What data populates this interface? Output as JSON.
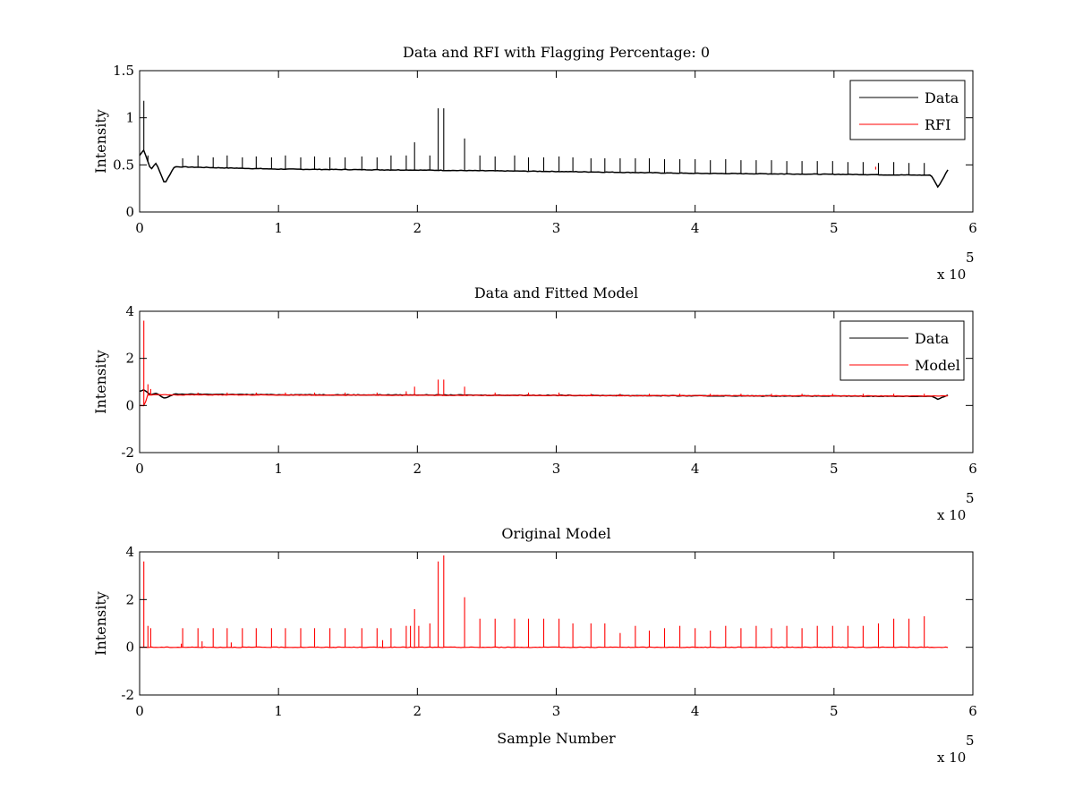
{
  "chart_data": [
    {
      "type": "line",
      "title": "Data and RFI with Flagging Percentage: 0",
      "xlabel": "",
      "ylabel": "Intensity",
      "xlim": [
        0,
        600000
      ],
      "ylim": [
        0,
        1.5
      ],
      "xticks": [
        0,
        1,
        2,
        3,
        4,
        5,
        6
      ],
      "yticks": [
        0,
        0.5,
        1,
        1.5
      ],
      "x_exponent_label": "x 10",
      "x_exponent": "5",
      "legend_position": "top-right",
      "legend": [
        {
          "name": "Data",
          "color": "#000000"
        },
        {
          "name": "RFI",
          "color": "#ff0000"
        }
      ],
      "series": [
        {
          "name": "Data",
          "color": "#000000",
          "baseline": {
            "x": [
              0,
              3000,
              8000,
              12000,
              18000,
              25000,
              100000,
              200000,
              300000,
              400000,
              500000,
              570000,
              575000,
              582000
            ],
            "y": [
              0.6,
              0.66,
              0.45,
              0.52,
              0.3,
              0.48,
              0.455,
              0.445,
              0.43,
              0.41,
              0.4,
              0.39,
              0.26,
              0.45
            ]
          },
          "spikes": [
            {
              "x": 3000,
              "y": 1.18
            },
            {
              "x": 6000,
              "y": 0.6
            },
            {
              "x": 31000,
              "y": 0.57
            },
            {
              "x": 42000,
              "y": 0.6
            },
            {
              "x": 53000,
              "y": 0.58
            },
            {
              "x": 63000,
              "y": 0.6
            },
            {
              "x": 74000,
              "y": 0.58
            },
            {
              "x": 84000,
              "y": 0.59
            },
            {
              "x": 95000,
              "y": 0.58
            },
            {
              "x": 105000,
              "y": 0.6
            },
            {
              "x": 116000,
              "y": 0.58
            },
            {
              "x": 126000,
              "y": 0.59
            },
            {
              "x": 137000,
              "y": 0.58
            },
            {
              "x": 148000,
              "y": 0.58
            },
            {
              "x": 160000,
              "y": 0.59
            },
            {
              "x": 171000,
              "y": 0.58
            },
            {
              "x": 181000,
              "y": 0.6
            },
            {
              "x": 192000,
              "y": 0.6
            },
            {
              "x": 198000,
              "y": 0.74
            },
            {
              "x": 209000,
              "y": 0.6
            },
            {
              "x": 215000,
              "y": 1.1
            },
            {
              "x": 219000,
              "y": 1.1
            },
            {
              "x": 234000,
              "y": 0.78
            },
            {
              "x": 245000,
              "y": 0.6
            },
            {
              "x": 256000,
              "y": 0.59
            },
            {
              "x": 270000,
              "y": 0.6
            },
            {
              "x": 280000,
              "y": 0.58
            },
            {
              "x": 291000,
              "y": 0.58
            },
            {
              "x": 302000,
              "y": 0.59
            },
            {
              "x": 312000,
              "y": 0.58
            },
            {
              "x": 325000,
              "y": 0.57
            },
            {
              "x": 335000,
              "y": 0.57
            },
            {
              "x": 346000,
              "y": 0.57
            },
            {
              "x": 357000,
              "y": 0.57
            },
            {
              "x": 367000,
              "y": 0.57
            },
            {
              "x": 378000,
              "y": 0.56
            },
            {
              "x": 389000,
              "y": 0.56
            },
            {
              "x": 400000,
              "y": 0.56
            },
            {
              "x": 411000,
              "y": 0.55
            },
            {
              "x": 422000,
              "y": 0.56
            },
            {
              "x": 433000,
              "y": 0.55
            },
            {
              "x": 444000,
              "y": 0.55
            },
            {
              "x": 455000,
              "y": 0.55
            },
            {
              "x": 466000,
              "y": 0.54
            },
            {
              "x": 477000,
              "y": 0.54
            },
            {
              "x": 488000,
              "y": 0.54
            },
            {
              "x": 499000,
              "y": 0.54
            },
            {
              "x": 510000,
              "y": 0.53
            },
            {
              "x": 521000,
              "y": 0.53
            },
            {
              "x": 532000,
              "y": 0.52
            },
            {
              "x": 543000,
              "y": 0.53
            },
            {
              "x": 554000,
              "y": 0.52
            },
            {
              "x": 565000,
              "y": 0.52
            }
          ]
        },
        {
          "name": "RFI",
          "color": "#ff0000",
          "spikes": [
            {
              "x": 530000,
              "y": 0.48
            }
          ]
        }
      ]
    },
    {
      "type": "line",
      "title": "Data and Fitted Model",
      "xlabel": "",
      "ylabel": "Intensity",
      "xlim": [
        0,
        600000
      ],
      "ylim": [
        -2,
        4
      ],
      "xticks": [
        0,
        1,
        2,
        3,
        4,
        5,
        6
      ],
      "yticks": [
        -2,
        0,
        2,
        4
      ],
      "x_exponent_label": "x 10",
      "x_exponent": "5",
      "legend_position": "top-right",
      "legend": [
        {
          "name": "Data",
          "color": "#000000"
        },
        {
          "name": "Model",
          "color": "#ff0000"
        }
      ],
      "series": [
        {
          "name": "Data",
          "color": "#000000",
          "baseline": {
            "x": [
              0,
              3000,
              8000,
              12000,
              18000,
              25000,
              100000,
              200000,
              300000,
              400000,
              500000,
              570000,
              575000,
              582000
            ],
            "y": [
              0.6,
              0.66,
              0.45,
              0.52,
              0.3,
              0.48,
              0.455,
              0.445,
              0.43,
              0.41,
              0.4,
              0.39,
              0.26,
              0.45
            ]
          }
        },
        {
          "name": "Model",
          "color": "#ff0000",
          "baseline": {
            "x": [
              0,
              4000,
              5000,
              25000,
              582000
            ],
            "y": [
              0,
              0,
              0.45,
              0.45,
              0.4
            ]
          },
          "spikes": [
            {
              "x": 3000,
              "y": 3.6
            },
            {
              "x": 6000,
              "y": 0.9
            },
            {
              "x": 8000,
              "y": 0.7
            },
            {
              "x": 42000,
              "y": 0.55
            },
            {
              "x": 63000,
              "y": 0.55
            },
            {
              "x": 84000,
              "y": 0.55
            },
            {
              "x": 105000,
              "y": 0.55
            },
            {
              "x": 126000,
              "y": 0.55
            },
            {
              "x": 148000,
              "y": 0.55
            },
            {
              "x": 171000,
              "y": 0.55
            },
            {
              "x": 192000,
              "y": 0.6
            },
            {
              "x": 198000,
              "y": 0.8
            },
            {
              "x": 215000,
              "y": 1.1
            },
            {
              "x": 219000,
              "y": 1.1
            },
            {
              "x": 234000,
              "y": 0.8
            },
            {
              "x": 256000,
              "y": 0.55
            },
            {
              "x": 280000,
              "y": 0.55
            },
            {
              "x": 302000,
              "y": 0.55
            },
            {
              "x": 325000,
              "y": 0.5
            },
            {
              "x": 346000,
              "y": 0.5
            },
            {
              "x": 367000,
              "y": 0.5
            },
            {
              "x": 389000,
              "y": 0.5
            },
            {
              "x": 411000,
              "y": 0.5
            },
            {
              "x": 433000,
              "y": 0.5
            },
            {
              "x": 455000,
              "y": 0.5
            },
            {
              "x": 477000,
              "y": 0.5
            },
            {
              "x": 499000,
              "y": 0.5
            },
            {
              "x": 521000,
              "y": 0.5
            },
            {
              "x": 543000,
              "y": 0.5
            },
            {
              "x": 565000,
              "y": 0.5
            }
          ]
        }
      ]
    },
    {
      "type": "line",
      "title": "Original Model",
      "xlabel": "Sample Number",
      "ylabel": "Intensity",
      "xlim": [
        0,
        600000
      ],
      "ylim": [
        -2,
        4
      ],
      "xticks": [
        0,
        1,
        2,
        3,
        4,
        5,
        6
      ],
      "yticks": [
        -2,
        0,
        2,
        4
      ],
      "x_exponent_label": "x 10",
      "x_exponent": "5",
      "series": [
        {
          "name": "Original Model",
          "color": "#ff0000",
          "baseline": {
            "x": [
              0,
              582000
            ],
            "y": [
              0,
              0
            ]
          },
          "spikes": [
            {
              "x": 3000,
              "y": 3.6
            },
            {
              "x": 6000,
              "y": 0.9
            },
            {
              "x": 8000,
              "y": 0.8
            },
            {
              "x": 30000,
              "y": 0.15
            },
            {
              "x": 31000,
              "y": 0.8
            },
            {
              "x": 42000,
              "y": 0.8
            },
            {
              "x": 45000,
              "y": 0.25
            },
            {
              "x": 53000,
              "y": 0.8
            },
            {
              "x": 63000,
              "y": 0.8
            },
            {
              "x": 66000,
              "y": 0.2
            },
            {
              "x": 74000,
              "y": 0.8
            },
            {
              "x": 84000,
              "y": 0.8
            },
            {
              "x": 95000,
              "y": 0.8
            },
            {
              "x": 105000,
              "y": 0.8
            },
            {
              "x": 116000,
              "y": 0.8
            },
            {
              "x": 126000,
              "y": 0.8
            },
            {
              "x": 137000,
              "y": 0.8
            },
            {
              "x": 148000,
              "y": 0.8
            },
            {
              "x": 160000,
              "y": 0.8
            },
            {
              "x": 171000,
              "y": 0.8
            },
            {
              "x": 175000,
              "y": 0.3
            },
            {
              "x": 181000,
              "y": 0.8
            },
            {
              "x": 192000,
              "y": 0.9
            },
            {
              "x": 195000,
              "y": 0.9
            },
            {
              "x": 198000,
              "y": 1.6
            },
            {
              "x": 201000,
              "y": 0.9
            },
            {
              "x": 209000,
              "y": 1.0
            },
            {
              "x": 215000,
              "y": 3.6
            },
            {
              "x": 219000,
              "y": 3.85
            },
            {
              "x": 234000,
              "y": 2.1
            },
            {
              "x": 245000,
              "y": 1.2
            },
            {
              "x": 256000,
              "y": 1.2
            },
            {
              "x": 270000,
              "y": 1.2
            },
            {
              "x": 280000,
              "y": 1.2
            },
            {
              "x": 291000,
              "y": 1.2
            },
            {
              "x": 302000,
              "y": 1.2
            },
            {
              "x": 312000,
              "y": 1.0
            },
            {
              "x": 325000,
              "y": 1.0
            },
            {
              "x": 335000,
              "y": 1.0
            },
            {
              "x": 346000,
              "y": 0.6
            },
            {
              "x": 357000,
              "y": 0.9
            },
            {
              "x": 367000,
              "y": 0.7
            },
            {
              "x": 378000,
              "y": 0.8
            },
            {
              "x": 389000,
              "y": 0.9
            },
            {
              "x": 400000,
              "y": 0.8
            },
            {
              "x": 411000,
              "y": 0.7
            },
            {
              "x": 422000,
              "y": 0.9
            },
            {
              "x": 433000,
              "y": 0.8
            },
            {
              "x": 444000,
              "y": 0.9
            },
            {
              "x": 455000,
              "y": 0.8
            },
            {
              "x": 466000,
              "y": 0.9
            },
            {
              "x": 477000,
              "y": 0.8
            },
            {
              "x": 488000,
              "y": 0.9
            },
            {
              "x": 499000,
              "y": 0.9
            },
            {
              "x": 510000,
              "y": 0.9
            },
            {
              "x": 521000,
              "y": 0.9
            },
            {
              "x": 532000,
              "y": 1.0
            },
            {
              "x": 543000,
              "y": 1.2
            },
            {
              "x": 554000,
              "y": 1.2
            },
            {
              "x": 565000,
              "y": 1.3
            }
          ]
        }
      ]
    }
  ]
}
